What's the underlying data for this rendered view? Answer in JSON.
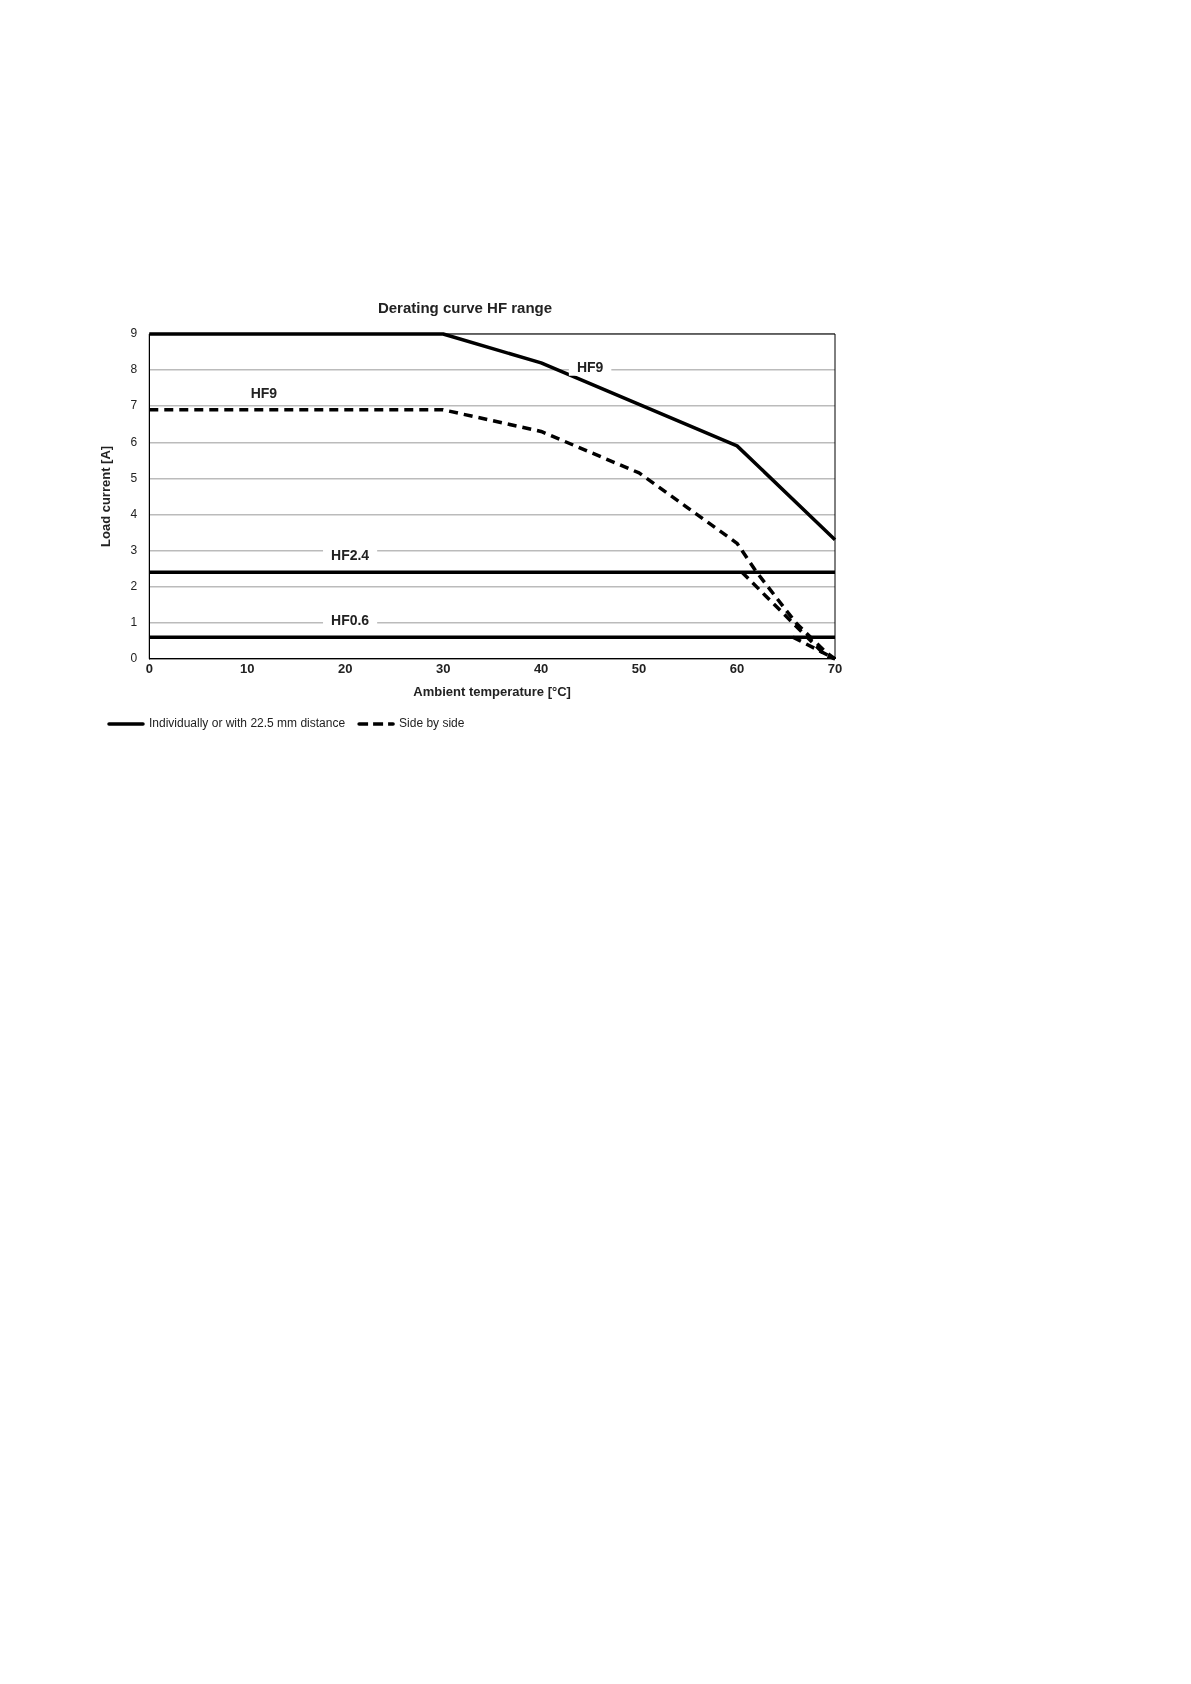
{
  "chart_data": {
    "type": "line",
    "title": "Derating curve HF range",
    "xlabel": "Ambient temperature [°C]",
    "ylabel": "Load current [A]",
    "series": [
      {
        "name": "Individually or with 22.5 mm distance",
        "color": "#000000",
        "line_style": "solid",
        "x": [
          0,
          30,
          40,
          50,
          60,
          70
        ],
        "values": [
          9,
          9,
          8.2,
          7.05,
          5.9,
          3.3
        ]
      },
      {
        "name": "Side by side",
        "color": "#000000",
        "line_style": "dashed",
        "x": [
          0,
          30,
          40,
          50,
          60,
          62,
          66,
          69,
          70
        ],
        "values": [
          6.9,
          6.9,
          6.3,
          5.15,
          3.2,
          2.4,
          1.0,
          0.2,
          0
        ]
      },
      {
        "color": "#000000",
        "line_style": "solid",
        "x": [
          0,
          70
        ],
        "values": [
          2.4,
          2.4
        ]
      },
      {
        "color": "#000000",
        "line_style": "dashed",
        "x": [
          60.5,
          69,
          70
        ],
        "values": [
          2.4,
          0.1,
          0
        ]
      },
      {
        "color": "#000000",
        "line_style": "solid",
        "x": [
          0,
          70
        ],
        "values": [
          0.6,
          0.6
        ]
      },
      {
        "color": "#000000",
        "line_style": "dashed",
        "x": [
          65.7,
          70
        ],
        "values": [
          0.6,
          0
        ]
      }
    ],
    "annotations": [
      {
        "text": "HF9",
        "x": 45,
        "y": 7.62
      },
      {
        "text": "HF9",
        "x": 11.7,
        "y": 6.9
      },
      {
        "text": "HF2.4",
        "x": 20.5,
        "y": 2.4
      },
      {
        "text": "HF0.6",
        "x": 20.5,
        "y": 0.6
      }
    ],
    "xlim": [
      0,
      70
    ],
    "xticks": [
      0,
      10,
      20,
      30,
      40,
      50,
      60,
      70
    ],
    "ylim": [
      0,
      9
    ],
    "yticks": [
      0,
      1,
      2,
      3,
      4,
      5,
      6,
      7,
      8,
      9
    ],
    "grid": "y",
    "legend": "bottom left",
    "marker": "none"
  }
}
